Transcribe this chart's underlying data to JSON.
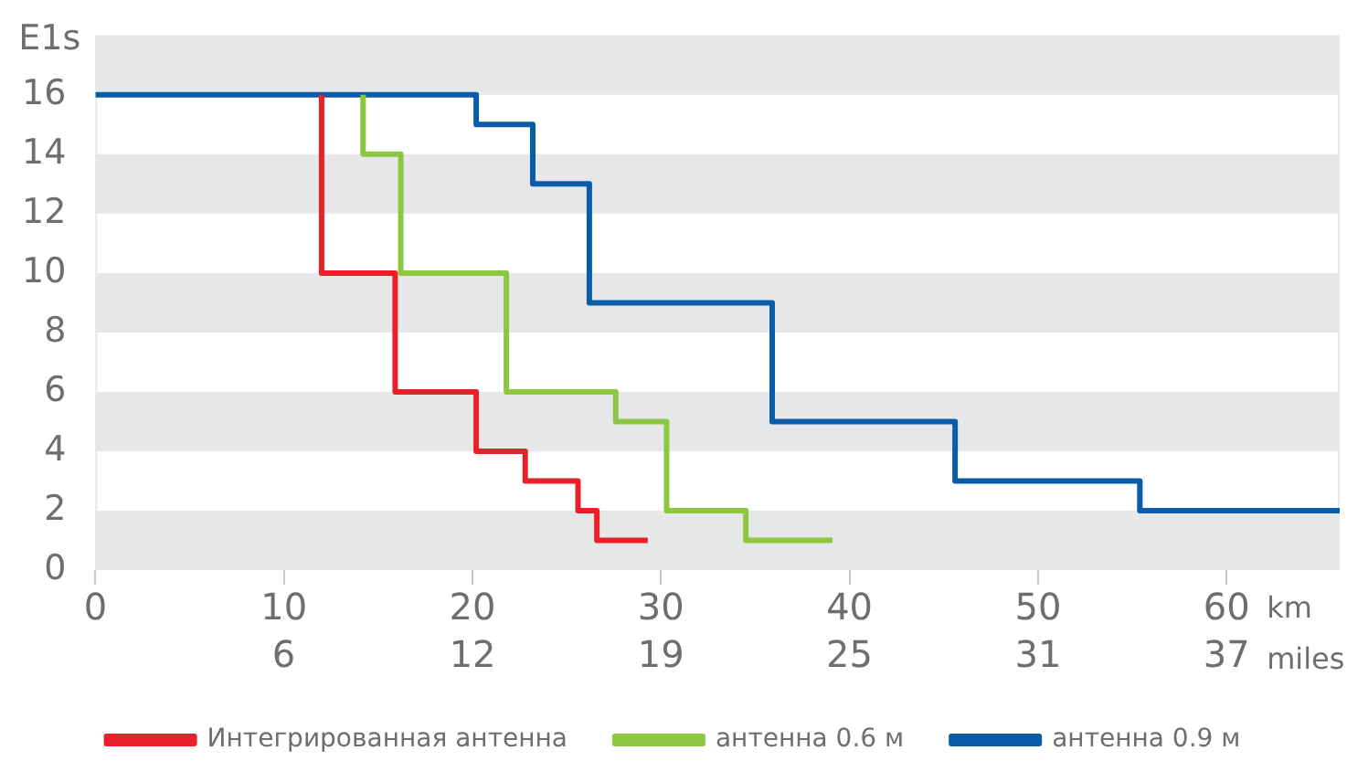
{
  "chart_data": {
    "type": "step",
    "ylabel": "E1s",
    "xlabel": "km",
    "x2label": "miles",
    "x2lim": [
      0,
      41.01
    ],
    "x2ticks": [
      {
        "value": 6.21,
        "label": "6"
      },
      {
        "value": 12.43,
        "label": "12"
      },
      {
        "value": 18.64,
        "label": "19"
      },
      {
        "value": 24.85,
        "label": "25"
      },
      {
        "value": 31.07,
        "label": "31"
      },
      {
        "value": 37.28,
        "label": "37"
      }
    ],
    "xlim": [
      0,
      66
    ],
    "ylim": [
      0,
      18
    ],
    "xticks": [
      0,
      10,
      20,
      30,
      40,
      50,
      60
    ],
    "yticks": [
      0,
      2,
      4,
      6,
      8,
      10,
      12,
      14,
      16
    ],
    "bands": [
      {
        "axis": "y",
        "from": 0,
        "to": 2,
        "color": "#e6e7e8"
      },
      {
        "axis": "y",
        "from": 4,
        "to": 6,
        "color": "#e6e7e8"
      },
      {
        "axis": "y",
        "from": 8,
        "to": 10,
        "color": "#e6e7e8"
      },
      {
        "axis": "y",
        "from": 12,
        "to": 14,
        "color": "#e6e7e8"
      },
      {
        "axis": "y",
        "from": 16,
        "to": 18,
        "color": "#e6e7e8"
      }
    ],
    "legend": "bottom",
    "line_style": "solid",
    "marker": "none",
    "series": [
      {
        "name": "Интегрированная антенна",
        "color": "#e8202a",
        "x": [
          12,
          15.9,
          20.2,
          22.8,
          25.6,
          26.6,
          29.3
        ],
        "values": [
          16,
          10,
          6,
          4,
          3,
          2,
          1
        ]
      },
      {
        "name": "антенна 0.6 м",
        "color": "#8dc63f",
        "x": [
          14.2,
          16.2,
          21.8,
          27.6,
          30.3,
          34.5,
          39.1
        ],
        "values": [
          16,
          14,
          10,
          6,
          5,
          2,
          1
        ]
      },
      {
        "name": "антенна 0.9 м",
        "color": "#0a5ca8",
        "x": [
          0,
          20.2,
          23.2,
          26.2,
          35.9,
          45.6,
          55.4,
          66
        ],
        "values": [
          16,
          16,
          15,
          13,
          9,
          5,
          3,
          2
        ]
      }
    ]
  }
}
